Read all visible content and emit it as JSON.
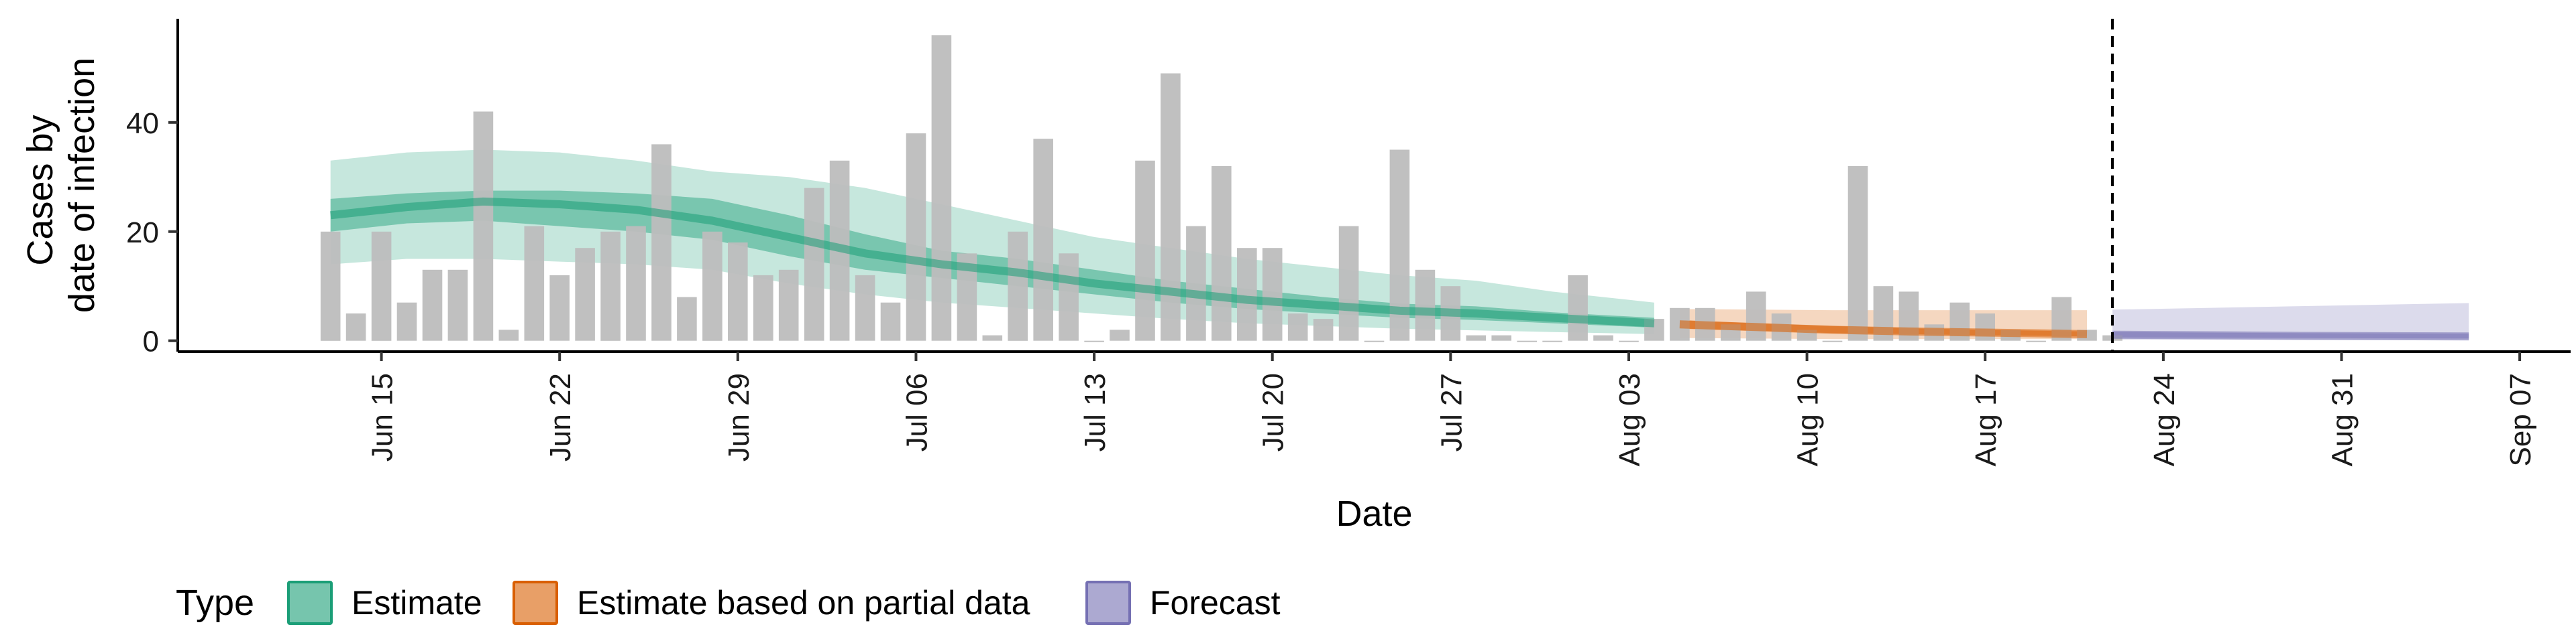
{
  "chart_data": {
    "type": "bar",
    "xlabel": "Date",
    "ylabel_lines": [
      "Cases by",
      "date of infection"
    ],
    "y_ticks": [
      0,
      20,
      40
    ],
    "ylim": [
      -2,
      59
    ],
    "xlim": [
      "2021-06-07",
      "2021-09-09"
    ],
    "x_ticks": [
      {
        "date": "2021-06-15",
        "label": "Jun 15"
      },
      {
        "date": "2021-06-22",
        "label": "Jun 22"
      },
      {
        "date": "2021-06-29",
        "label": "Jun 29"
      },
      {
        "date": "2021-07-06",
        "label": "Jul 06"
      },
      {
        "date": "2021-07-13",
        "label": "Jul 13"
      },
      {
        "date": "2021-07-20",
        "label": "Jul 20"
      },
      {
        "date": "2021-07-27",
        "label": "Jul 27"
      },
      {
        "date": "2021-08-03",
        "label": "Aug 03"
      },
      {
        "date": "2021-08-10",
        "label": "Aug 10"
      },
      {
        "date": "2021-08-17",
        "label": "Aug 17"
      },
      {
        "date": "2021-08-24",
        "label": "Aug 24"
      },
      {
        "date": "2021-08-31",
        "label": "Aug 31"
      },
      {
        "date": "2021-09-07",
        "label": "Sep 07"
      }
    ],
    "bars_start_date": "2021-06-13",
    "bars_values": [
      20,
      5,
      20,
      7,
      13,
      13,
      42,
      2,
      21,
      12,
      17,
      20,
      21,
      36,
      8,
      20,
      18,
      12,
      13,
      28,
      33,
      12,
      7,
      38,
      56,
      16,
      1,
      20,
      37,
      16,
      0,
      2,
      33,
      49,
      21,
      32,
      17,
      17,
      5,
      4,
      21,
      0,
      35,
      13,
      10,
      1,
      1,
      0,
      0,
      12,
      1,
      0,
      4,
      6,
      6,
      3,
      9,
      5,
      2,
      0,
      32,
      10,
      9,
      3,
      7,
      5,
      2,
      0,
      8,
      2,
      1
    ],
    "vline_date": "2021-08-22",
    "series": [
      {
        "name": "Estimate",
        "color": "#1b9e77",
        "dates": [
          "2021-06-13",
          "2021-06-16",
          "2021-06-19",
          "2021-06-22",
          "2021-06-25",
          "2021-06-28",
          "2021-07-01",
          "2021-07-04",
          "2021-07-07",
          "2021-07-10",
          "2021-07-13",
          "2021-07-16",
          "2021-07-19",
          "2021-07-22",
          "2021-07-25",
          "2021-07-28",
          "2021-07-31",
          "2021-08-04"
        ],
        "median": [
          23,
          24.5,
          25.5,
          25,
          24,
          22,
          19,
          16,
          14,
          12.5,
          10.5,
          9,
          7.5,
          6.5,
          5.5,
          5,
          4.2,
          3.2
        ],
        "inner_lower": [
          20,
          21.5,
          22,
          21,
          20,
          18.5,
          15.5,
          13,
          11.5,
          10,
          8.5,
          7,
          5.8,
          5,
          4.2,
          3.8,
          3.2,
          2.4
        ],
        "inner_upper": [
          26,
          27,
          27.5,
          27.5,
          27,
          26,
          23,
          19.5,
          16.5,
          15,
          13,
          11,
          9.5,
          8,
          6.8,
          6.3,
          5.2,
          4.2
        ],
        "outer_lower": [
          14,
          15,
          15,
          14.5,
          14,
          13,
          10.5,
          8.5,
          7,
          6,
          5,
          4,
          3.2,
          2.7,
          2.2,
          1.9,
          1.6,
          1.2
        ],
        "outer_upper": [
          33,
          34.5,
          35,
          34.5,
          33,
          31,
          30,
          28,
          25,
          22,
          19,
          17,
          15,
          13.5,
          12,
          11,
          9,
          7
        ]
      },
      {
        "name": "Estimate based on partial data",
        "color": "#d95f02",
        "dates": [
          "2021-08-05",
          "2021-08-08",
          "2021-08-11",
          "2021-08-14",
          "2021-08-17",
          "2021-08-21"
        ],
        "median": [
          3,
          2.5,
          2,
          1.7,
          1.5,
          1.2
        ],
        "inner_lower": [
          2.2,
          1.8,
          1.4,
          1.2,
          1,
          0.8
        ],
        "inner_upper": [
          3.8,
          3.2,
          2.7,
          2.3,
          2,
          1.7
        ],
        "outer_lower": [
          0.5,
          0.4,
          0.3,
          0.3,
          0.3,
          0.3
        ],
        "outer_upper": [
          5.8,
          5.7,
          5.6,
          5.6,
          5.6,
          5.6
        ]
      },
      {
        "name": "Forecast",
        "color": "#7570b3",
        "dates": [
          "2021-08-22",
          "2021-08-29",
          "2021-09-05"
        ],
        "median": [
          1.1,
          0.9,
          0.8
        ],
        "inner_lower": [
          0.6,
          0.5,
          0.4
        ],
        "inner_upper": [
          1.6,
          1.4,
          1.3
        ],
        "outer_lower": [
          0.2,
          0.2,
          0.2
        ],
        "outer_upper": [
          5.7,
          6.3,
          6.9
        ]
      }
    ],
    "legend": {
      "title": "Type",
      "position": "bottom-left",
      "items": [
        "Estimate",
        "Estimate based on partial data",
        "Forecast"
      ]
    },
    "bar_color": "#bdbdbd",
    "grid": false
  }
}
